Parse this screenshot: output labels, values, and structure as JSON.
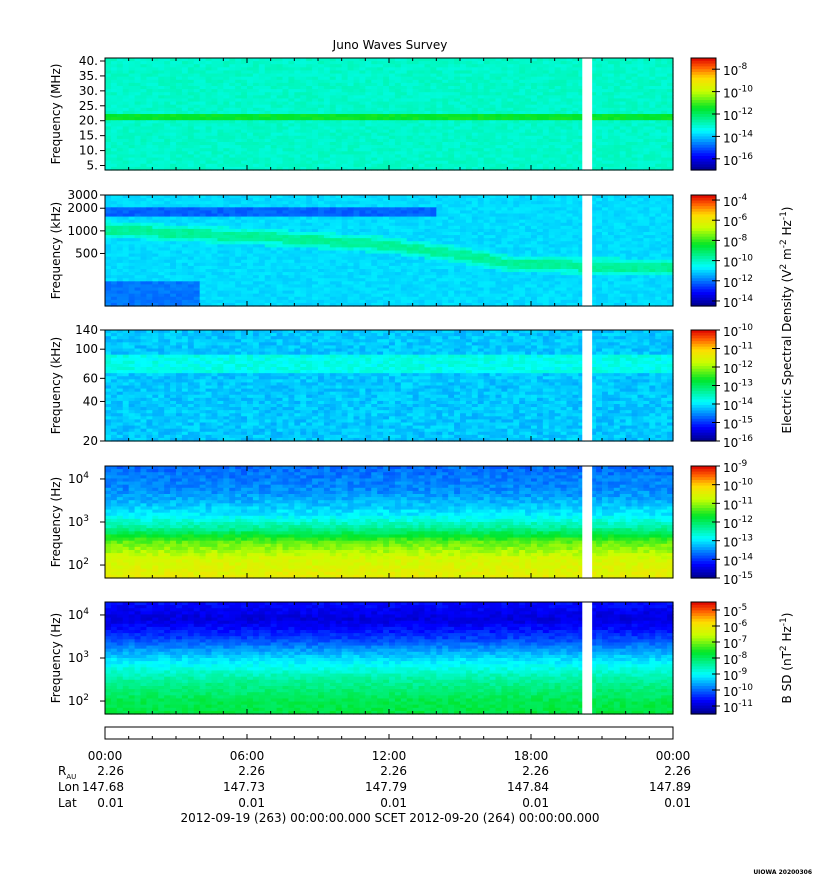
{
  "chart_data": {
    "type": "heatmap",
    "title": "Juno Waves Survey",
    "x_range": [
      "2012-09-19 00:00",
      "2012-09-20 00:00"
    ],
    "data_gap": [
      "20:10",
      "20:35"
    ],
    "panels": [
      {
        "ylabel": "Frequency (MHz)",
        "yscale": "linear",
        "ylim": [
          3.5,
          41
        ],
        "yticks": [
          "40.",
          "35.",
          "30.",
          "25.",
          "20.",
          "15.",
          "10.",
          "5."
        ],
        "ytick_values": [
          40,
          35,
          30,
          25,
          20,
          15,
          10,
          5
        ],
        "colorbar": {
          "labels": [
            "10",
            "10",
            "10",
            "10",
            "10"
          ],
          "exponents": [
            "-8",
            "-10",
            "-12",
            "-14",
            "-16"
          ],
          "exp_values": [
            -8,
            -10,
            -12,
            -14,
            -16
          ],
          "range": [
            -17,
            -7
          ]
        },
        "features": [
          {
            "kind": "band",
            "value": 21,
            "description_level": -11.5
          },
          {
            "kind": "band",
            "value": 8.5,
            "description_level": -13.5
          }
        ],
        "background_level": -13
      },
      {
        "ylabel": "Frequency (kHz)",
        "yscale": "log",
        "ylim": [
          100,
          3000
        ],
        "yticks": [
          "3000",
          "2000",
          "1000",
          "500"
        ],
        "ytick_values": [
          3000,
          2000,
          1000,
          500
        ],
        "colorbar": {
          "labels": [
            "10",
            "10",
            "10",
            "10",
            "10",
            "10"
          ],
          "exponents": [
            "-4",
            "-6",
            "-8",
            "-10",
            "-12",
            "-14"
          ],
          "exp_values": [
            -4,
            -6,
            -8,
            -10,
            -12,
            -14
          ],
          "range": [
            -14.5,
            -3.5
          ]
        },
        "background_level": -11,
        "emission_track": [
          {
            "hour": 0,
            "freq": 1050
          },
          {
            "hour": 4,
            "freq": 900
          },
          {
            "hour": 8,
            "freq": 780
          },
          {
            "hour": 12,
            "freq": 640
          },
          {
            "hour": 15,
            "freq": 480
          },
          {
            "hour": 17,
            "freq": 370
          },
          {
            "hour": 20,
            "freq": 340
          },
          {
            "hour": 24,
            "freq": 330
          }
        ]
      },
      {
        "ylabel": "Frequency (kHz)",
        "yscale": "log",
        "ylim": [
          20,
          140
        ],
        "yticks": [
          "140",
          "100",
          "60",
          "40",
          "20"
        ],
        "ytick_values": [
          140,
          100,
          60,
          40,
          20
        ],
        "colorbar": {
          "labels": [
            "10",
            "10",
            "10",
            "10",
            "10",
            "10",
            "10"
          ],
          "exponents": [
            "-10",
            "-11",
            "-12",
            "-13",
            "-14",
            "-15",
            "-16"
          ],
          "exp_values": [
            -10,
            -11,
            -12,
            -13,
            -14,
            -15,
            -16
          ],
          "range": [
            -16,
            -10
          ]
        },
        "background_level": -14.2,
        "features": [
          {
            "kind": "band",
            "value": 78,
            "description_level": -13.8
          }
        ]
      },
      {
        "ylabel": "Frequency (Hz)",
        "yscale": "log",
        "ylim": [
          50,
          20000
        ],
        "yticks": [
          "10",
          "10",
          "10"
        ],
        "ytick_exponents": [
          "4",
          "3",
          "2"
        ],
        "ytick_values": [
          10000,
          1000,
          100
        ],
        "colorbar": {
          "labels": [
            "10",
            "10",
            "10",
            "10",
            "10",
            "10",
            "10"
          ],
          "exponents": [
            "-9",
            "-10",
            "-11",
            "-12",
            "-13",
            "-14",
            "-15"
          ],
          "exp_values": [
            -9,
            -10,
            -11,
            -12,
            -13,
            -14,
            -15
          ],
          "range": [
            -15,
            -9
          ]
        },
        "profile": [
          {
            "freq": 20000,
            "level": -13.7
          },
          {
            "freq": 5000,
            "level": -13.5
          },
          {
            "freq": 1500,
            "level": -13.0
          },
          {
            "freq": 700,
            "level": -12.3
          },
          {
            "freq": 350,
            "level": -11.3
          },
          {
            "freq": 150,
            "level": -10.7
          },
          {
            "freq": 50,
            "level": -10.4
          }
        ]
      },
      {
        "ylabel": "Frequency (Hz)",
        "yscale": "log",
        "ylim": [
          50,
          20000
        ],
        "yticks": [
          "10",
          "10",
          "10"
        ],
        "ytick_exponents": [
          "4",
          "3",
          "2"
        ],
        "ytick_values": [
          10000,
          1000,
          100
        ],
        "colorbar": {
          "labels": [
            "10",
            "10",
            "10",
            "10",
            "10",
            "10",
            "10"
          ],
          "exponents": [
            "-5",
            "-6",
            "-7",
            "-8",
            "-9",
            "-10",
            "-11"
          ],
          "exp_values": [
            -5,
            -6,
            -7,
            -8,
            -9,
            -10,
            -11
          ],
          "range": [
            -11.5,
            -4.5
          ]
        },
        "profile": [
          {
            "freq": 20000,
            "level": -10.6
          },
          {
            "freq": 8000,
            "level": -10.9
          },
          {
            "freq": 3000,
            "level": -10.3
          },
          {
            "freq": 1000,
            "level": -9.3
          },
          {
            "freq": 300,
            "level": -8.4
          },
          {
            "freq": 100,
            "level": -7.9
          },
          {
            "freq": 50,
            "level": -7.8
          }
        ]
      }
    ],
    "colorbar_titles": {
      "electric": "Electric Spectral Density (V",
      "electric_sup1": "2",
      "electric_mid": " m",
      "electric_sup2": "-2",
      "electric_mid2": " Hz",
      "electric_sup3": "-1",
      "electric_end": ")",
      "magnetic": "B SD (nT",
      "magnetic_sup1": "2",
      "magnetic_mid": " Hz",
      "magnetic_sup2": "-1",
      "magnetic_end": ")"
    },
    "x_axis": {
      "times": [
        "00:00",
        "06:00",
        "12:00",
        "18:00",
        "00:00"
      ],
      "rows": [
        {
          "label": "R",
          "sub": "AU",
          "values": [
            "2.26",
            "2.26",
            "2.26",
            "2.26",
            "2.26"
          ]
        },
        {
          "label": "Lon",
          "sub": "",
          "values": [
            "147.68",
            "147.73",
            "147.79",
            "147.84",
            "147.89"
          ]
        },
        {
          "label": "Lat",
          "sub": "",
          "values": [
            "0.01",
            "0.01",
            "0.01",
            "0.01",
            "0.01"
          ]
        }
      ],
      "range_label": "2012-09-19 (263) 00:00:00.000     SCET     2012-09-20 (264) 00:00:00.000"
    },
    "footer_stamp": "UIOWA 20200306"
  }
}
